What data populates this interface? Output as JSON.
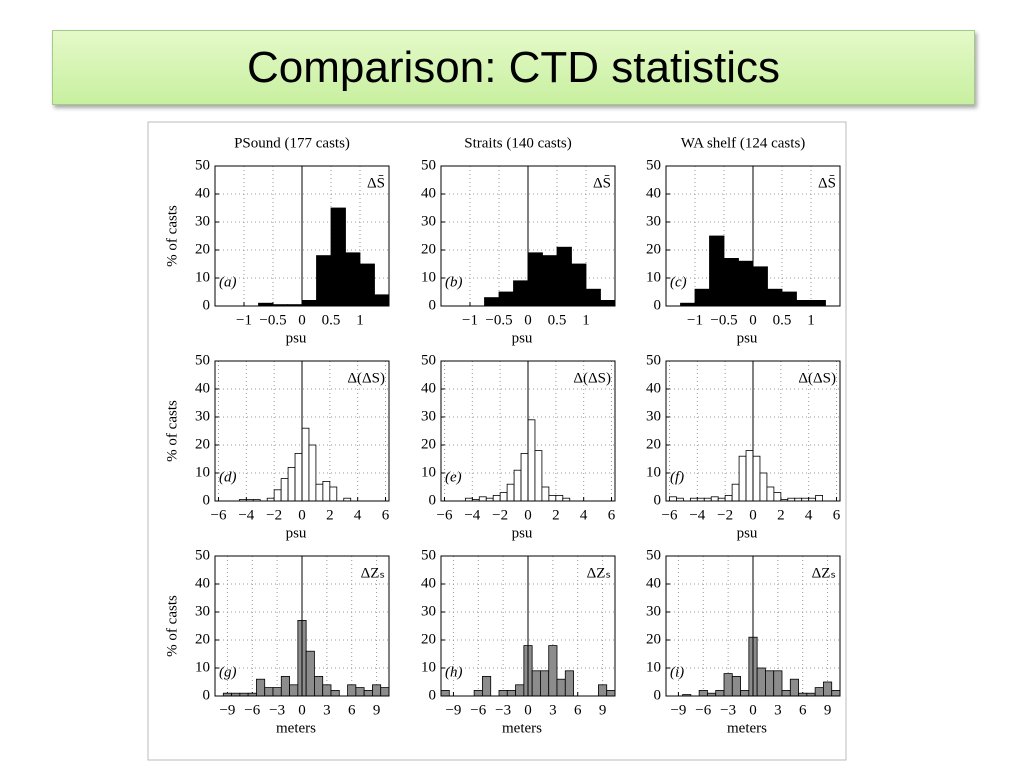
{
  "slide_title": "Comparison: CTD statistics",
  "chart_data": [
    {
      "type": "histogram",
      "title": "PSound (177 casts)",
      "ylabel": "% of casts",
      "xlabel": "psu",
      "panel_label": "(a)",
      "symbol": "ΔS̄",
      "color": "#000000",
      "bins": [
        -1.5,
        -1.25,
        -1,
        -0.75,
        -0.5,
        -0.25,
        0,
        0.25,
        0.5,
        0.75,
        1,
        1.25,
        1.5
      ],
      "values": [
        0,
        0,
        0,
        1,
        0.5,
        0.5,
        2,
        18,
        35,
        19,
        15,
        4
      ],
      "xlim": [
        -1.5,
        1.5
      ],
      "ylim": [
        0,
        50
      ],
      "xticks": [
        {
          "value": -1,
          "label": "−1"
        },
        {
          "value": -0.5,
          "label": "−0.5"
        },
        0,
        0.5,
        1
      ],
      "yticks": [
        0,
        10,
        20,
        30,
        40,
        50
      ],
      "grid": true
    },
    {
      "type": "histogram",
      "title": "Straits (140 casts)",
      "xlabel": "psu",
      "panel_label": "(b)",
      "symbol": "ΔS̄",
      "color": "#000000",
      "bins": [
        -1.5,
        -1.25,
        -1,
        -0.75,
        -0.5,
        -0.25,
        0,
        0.25,
        0.5,
        0.75,
        1,
        1.25,
        1.5
      ],
      "values": [
        0,
        0,
        0,
        3,
        5,
        9,
        19,
        18,
        21,
        15,
        6,
        2
      ],
      "xlim": [
        -1.5,
        1.5
      ],
      "ylim": [
        0,
        50
      ],
      "xticks": [
        {
          "value": -1,
          "label": "−1"
        },
        {
          "value": -0.5,
          "label": "−0.5"
        },
        0,
        0.5,
        1
      ],
      "yticks": [
        0,
        10,
        20,
        30,
        40,
        50
      ],
      "grid": true
    },
    {
      "type": "histogram",
      "title": "WA shelf (124 casts)",
      "xlabel": "psu",
      "panel_label": "(c)",
      "symbol": "ΔS̄",
      "color": "#000000",
      "bins": [
        -1.5,
        -1.25,
        -1,
        -0.75,
        -0.5,
        -0.25,
        0,
        0.25,
        0.5,
        0.75,
        1,
        1.25,
        1.5
      ],
      "values": [
        0,
        1,
        6,
        25,
        17,
        16,
        14,
        6,
        5,
        2,
        2,
        0
      ],
      "xlim": [
        -1.5,
        1.5
      ],
      "ylim": [
        0,
        50
      ],
      "xticks": [
        {
          "value": -1,
          "label": "−1"
        },
        {
          "value": -0.5,
          "label": "−0.5"
        },
        0,
        0.5,
        1
      ],
      "yticks": [
        0,
        10,
        20,
        30,
        40,
        50
      ],
      "grid": true
    },
    {
      "type": "histogram",
      "ylabel": "% of casts",
      "xlabel": "psu",
      "panel_label": "(d)",
      "symbol": "Δ(ΔS)",
      "color": "#ffffff",
      "bins": [
        -6,
        -5.5,
        -5,
        -4.5,
        -4,
        -3.5,
        -3,
        -2.5,
        -2,
        -1.5,
        -1,
        -0.5,
        0,
        0.5,
        1,
        1.5,
        2,
        2.5,
        3,
        3.5,
        4,
        4.5,
        5,
        5.5,
        6
      ],
      "values": [
        0,
        0,
        0,
        0.5,
        0.5,
        0.5,
        0,
        1,
        4,
        8,
        12,
        17,
        26,
        20,
        6,
        7,
        5,
        0,
        1,
        0,
        0,
        0,
        0,
        0
      ],
      "xlim": [
        -6.25,
        6.25
      ],
      "ylim": [
        0,
        50
      ],
      "xticks": [
        {
          "value": -6,
          "label": "−6"
        },
        {
          "value": -4,
          "label": "−4"
        },
        {
          "value": -2,
          "label": "−2"
        },
        0,
        2,
        4,
        6
      ],
      "yticks": [
        0,
        10,
        20,
        30,
        40,
        50
      ],
      "grid": true
    },
    {
      "type": "histogram",
      "xlabel": "psu",
      "panel_label": "(e)",
      "symbol": "Δ(ΔS)",
      "color": "#ffffff",
      "bins": [
        -6,
        -5.5,
        -5,
        -4.5,
        -4,
        -3.5,
        -3,
        -2.5,
        -2,
        -1.5,
        -1,
        -0.5,
        0,
        0.5,
        1,
        1.5,
        2,
        2.5,
        3,
        3.5,
        4,
        4.5,
        5,
        5.5,
        6
      ],
      "values": [
        0,
        0,
        0,
        1,
        0.5,
        1.5,
        1,
        2,
        3,
        6,
        11,
        17,
        29,
        18,
        5,
        2,
        2,
        1,
        0,
        0,
        0,
        0,
        0,
        0
      ],
      "xlim": [
        -6.25,
        6.25
      ],
      "ylim": [
        0,
        50
      ],
      "xticks": [
        {
          "value": -6,
          "label": "−6"
        },
        {
          "value": -4,
          "label": "−4"
        },
        {
          "value": -2,
          "label": "−2"
        },
        0,
        2,
        4,
        6
      ],
      "yticks": [
        0,
        10,
        20,
        30,
        40,
        50
      ],
      "grid": true
    },
    {
      "type": "histogram",
      "xlabel": "psu",
      "panel_label": "(f)",
      "symbol": "Δ(ΔS)",
      "color": "#ffffff",
      "bins": [
        -6,
        -5.5,
        -5,
        -4.5,
        -4,
        -3.5,
        -3,
        -2.5,
        -2,
        -1.5,
        -1,
        -0.5,
        0,
        0.5,
        1,
        1.5,
        2,
        2.5,
        3,
        3.5,
        4,
        4.5,
        5,
        5.5,
        6
      ],
      "values": [
        1.5,
        1,
        0,
        1,
        1,
        1,
        1.5,
        1,
        2,
        6,
        16,
        18,
        16,
        10,
        5,
        3,
        0.5,
        1,
        1,
        1,
        1,
        2,
        0,
        0
      ],
      "xlim": [
        -6.25,
        6.25
      ],
      "ylim": [
        0,
        50
      ],
      "xticks": [
        {
          "value": -6,
          "label": "−6"
        },
        {
          "value": -4,
          "label": "−4"
        },
        {
          "value": -2,
          "label": "−2"
        },
        0,
        2,
        4,
        6
      ],
      "yticks": [
        0,
        10,
        20,
        30,
        40,
        50
      ],
      "grid": true
    },
    {
      "type": "histogram",
      "ylabel": "% of casts",
      "xlabel": "meters",
      "panel_label": "(g)",
      "symbol": "ΔZₛ",
      "color": "#8c8c8c",
      "bins": [
        -10.5,
        -9.5,
        -8.5,
        -7.5,
        -6.5,
        -5.5,
        -4.5,
        -3.5,
        -2.5,
        -1.5,
        -0.5,
        0.5,
        1.5,
        2.5,
        3.5,
        4.5,
        5.5,
        6.5,
        7.5,
        8.5,
        9.5,
        10.5
      ],
      "values": [
        0,
        1,
        1,
        1,
        1,
        6,
        3,
        3,
        7,
        4,
        27,
        16,
        7,
        4,
        2,
        0,
        4,
        3,
        2,
        4,
        3
      ],
      "xlim": [
        -10.5,
        10.5
      ],
      "ylim": [
        0,
        50
      ],
      "xticks": [
        {
          "value": -9,
          "label": "−9"
        },
        {
          "value": -6,
          "label": "−6"
        },
        {
          "value": -3,
          "label": "−3"
        },
        0,
        3,
        6,
        9
      ],
      "yticks": [
        0,
        10,
        20,
        30,
        40,
        50
      ],
      "grid": true
    },
    {
      "type": "histogram",
      "xlabel": "meters",
      "panel_label": "(h)",
      "symbol": "ΔZₛ",
      "color": "#8c8c8c",
      "bins": [
        -10.5,
        -9.5,
        -8.5,
        -7.5,
        -6.5,
        -5.5,
        -4.5,
        -3.5,
        -2.5,
        -1.5,
        -0.5,
        0.5,
        1.5,
        2.5,
        3.5,
        4.5,
        5.5,
        6.5,
        7.5,
        8.5,
        9.5,
        10.5
      ],
      "values": [
        2,
        0,
        0,
        0,
        2,
        7,
        0,
        2,
        2,
        4,
        18,
        9,
        9,
        18,
        6,
        9,
        0,
        0,
        0,
        4,
        2
      ],
      "xlim": [
        -10.5,
        10.5
      ],
      "ylim": [
        0,
        50
      ],
      "xticks": [
        {
          "value": -9,
          "label": "−9"
        },
        {
          "value": -6,
          "label": "−6"
        },
        {
          "value": -3,
          "label": "−3"
        },
        0,
        3,
        6,
        9
      ],
      "yticks": [
        0,
        10,
        20,
        30,
        40,
        50
      ],
      "grid": true
    },
    {
      "type": "histogram",
      "xlabel": "meters",
      "panel_label": "(i)",
      "symbol": "ΔZₛ",
      "color": "#8c8c8c",
      "bins": [
        -10.5,
        -9.5,
        -8.5,
        -7.5,
        -6.5,
        -5.5,
        -4.5,
        -3.5,
        -2.5,
        -1.5,
        -0.5,
        0.5,
        1.5,
        2.5,
        3.5,
        4.5,
        5.5,
        6.5,
        7.5,
        8.5,
        9.5,
        10.5
      ],
      "values": [
        0,
        0,
        0.5,
        0,
        2,
        1,
        2,
        8,
        7,
        2,
        21,
        10,
        9,
        9,
        2,
        6,
        1,
        1,
        3,
        5,
        2
      ],
      "xlim": [
        -10.5,
        10.5
      ],
      "ylim": [
        0,
        50
      ],
      "xticks": [
        {
          "value": -9,
          "label": "−9"
        },
        {
          "value": -6,
          "label": "−6"
        },
        {
          "value": -3,
          "label": "−3"
        },
        0,
        3,
        6,
        9
      ],
      "yticks": [
        0,
        10,
        20,
        30,
        40,
        50
      ],
      "grid": true
    }
  ]
}
